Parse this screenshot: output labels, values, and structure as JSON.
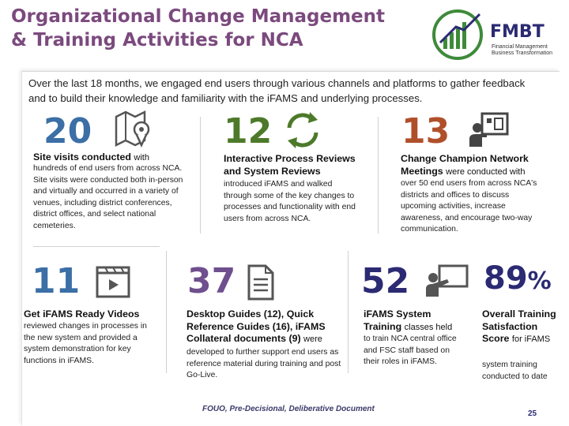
{
  "title_line1": "Organizational Change Management",
  "title_line2": "& Training Activities for NCA",
  "logo": {
    "name": "FMBT",
    "sub": "Financial Management Business Transformation"
  },
  "intro": "Over the last 18 months, we engaged end users through various channels and platforms to gather feedback and to build their knowledge and familiarity with the iFAMS and underlying processes.",
  "stats": {
    "site_visits": {
      "number": "20",
      "head": "Site visits conducted",
      "head_small": "with",
      "body": "hundreds of end users from across NCA. Site visits were conducted both in-person and virtually and occurred in a variety of venues, including district conferences, district offices, and select national cemeteries."
    },
    "process_reviews": {
      "number": "12",
      "head": "Interactive Process Reviews and System Reviews",
      "body": "introduced iFAMS and walked through some of the key changes to processes and functionality with end users from across NCA."
    },
    "champion": {
      "number": "13",
      "head": "Change Champion Network Meetings",
      "head_small": "were conducted with",
      "body": "over 50 end users from across NCA's districts and offices to discuss upcoming activities, increase awareness, and encourage two-way communication."
    },
    "videos": {
      "number": "11",
      "head": "Get iFAMS Ready Videos",
      "body": "reviewed changes in processes in the new system and provided a system demonstration for key functions in iFAMS."
    },
    "guides": {
      "number": "37",
      "head": "Desktop Guides (12), Quick Reference Guides (16), iFAMS Collateral documents (9)",
      "head_small": "were",
      "body": "developed to further support end users as reference material during training and post Go-Live."
    },
    "training": {
      "number": "52",
      "head": "iFAMS System Training",
      "head_small": "classes held",
      "body": "to train NCA central office and FSC staff based on their roles in iFAMS."
    },
    "satisfaction": {
      "number": "89",
      "unit": "%",
      "head": "Overall Training Satisfaction Score",
      "head_small": "for iFAMS",
      "body": "system training conducted to date"
    }
  },
  "footer": "FOUO, Pre-Decisional, Deliberative Document",
  "page_number": "25",
  "colors": {
    "title": "#7b4a7e",
    "blue": "#3b6fa6",
    "green": "#4d7a2a",
    "orange": "#b0502a",
    "purple": "#6f4f8d"
  }
}
